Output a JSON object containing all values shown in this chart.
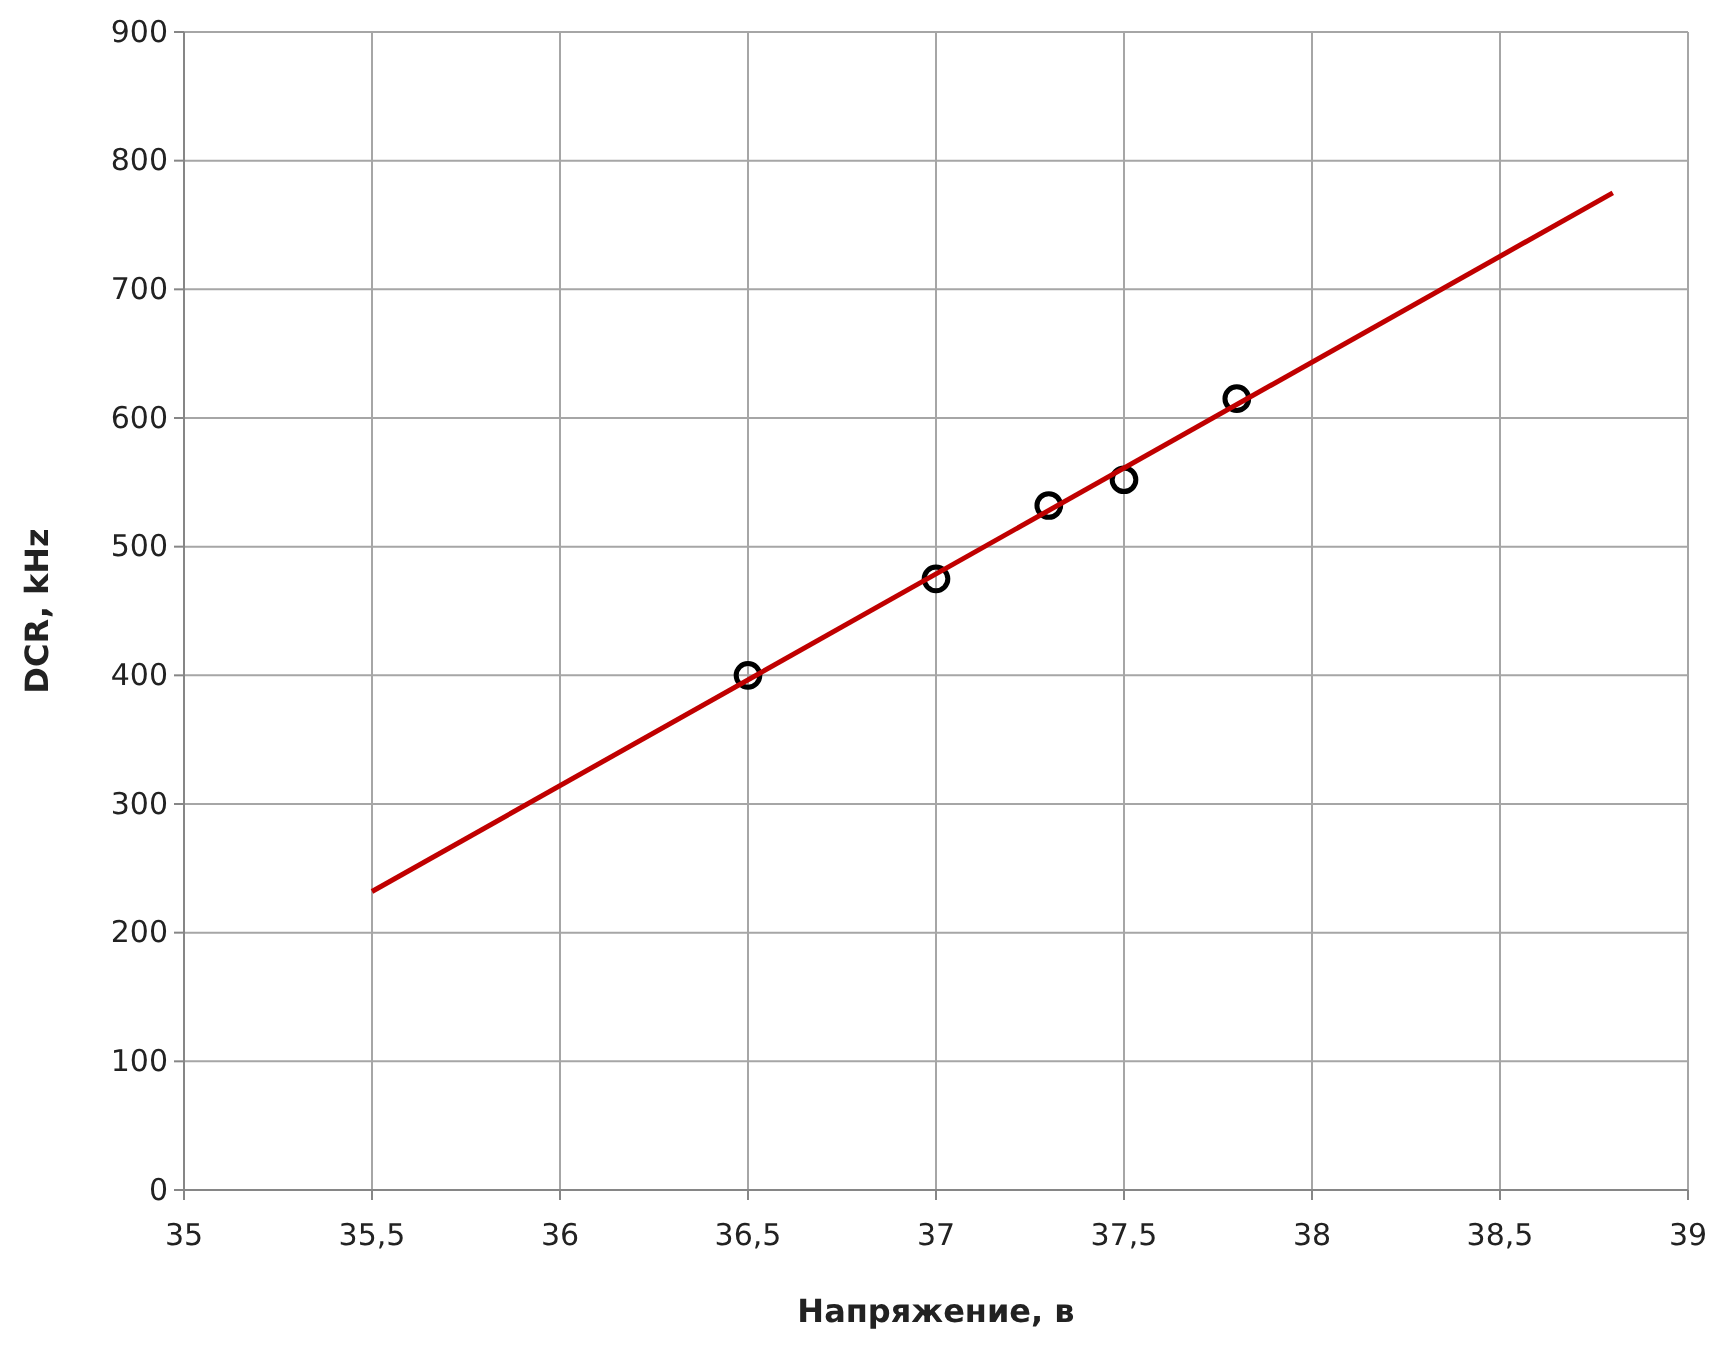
{
  "chart_data": {
    "type": "scatter",
    "xlabel": "Напряжение, в",
    "ylabel": "DCR, kHz",
    "xlim": [
      35,
      39
    ],
    "ylim": [
      0,
      900
    ],
    "xticks": [
      35,
      {
        "value": 35.5,
        "label": "35,5"
      },
      36,
      {
        "value": 36.5,
        "label": "36,5"
      },
      37,
      {
        "value": 37.5,
        "label": "37,5"
      },
      38,
      {
        "value": 38.5,
        "label": "38,5"
      },
      39
    ],
    "yticks": [
      0,
      100,
      200,
      300,
      400,
      500,
      600,
      700,
      800,
      900
    ],
    "grid": true,
    "marker": "circle",
    "series": [
      {
        "color": "#000000",
        "x": [
          36.5,
          37,
          37.3,
          37.5,
          37.8
        ],
        "values": [
          400,
          475,
          532,
          552,
          615
        ]
      },
      {
        "type": "line",
        "color": "#c00000",
        "marker": "none",
        "x": [
          35.5,
          38.8
        ],
        "values": [
          232,
          775
        ]
      }
    ]
  }
}
